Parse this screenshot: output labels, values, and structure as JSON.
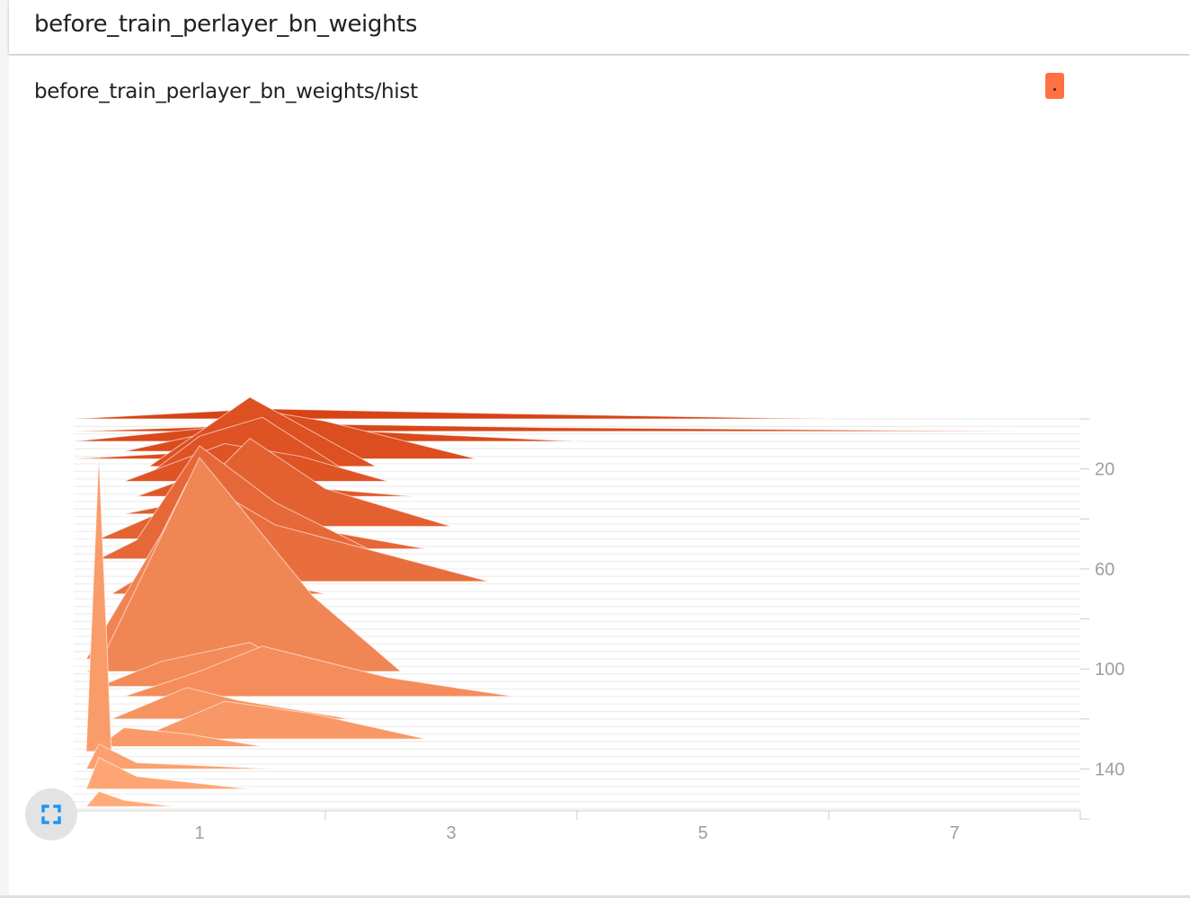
{
  "header": {
    "title": "before_train_perlayer_bn_weights"
  },
  "card": {
    "title": "before_train_perlayer_bn_weights/hist"
  },
  "colors": {
    "accent": "#ff7043",
    "icon": "#2196f3"
  },
  "icons": {
    "expand": "fullscreen-icon"
  },
  "chart_data": {
    "type": "histogram-offset",
    "xlim": [
      0,
      8
    ],
    "x_ticks": [
      1,
      3,
      5,
      7
    ],
    "step_range": [
      0,
      156
    ],
    "step_ticks": [
      20,
      60,
      100,
      140
    ],
    "x_tick_labels": [
      "1",
      "3",
      "5",
      "7"
    ],
    "step_tick_labels": [
      "20",
      "60",
      "100",
      "140"
    ],
    "distributions": [
      {
        "step": 0,
        "points": [
          [
            0,
            0
          ],
          [
            1.5,
            0.08
          ],
          [
            3.5,
            0.04
          ],
          [
            6,
            0
          ]
        ]
      },
      {
        "step": 5,
        "points": [
          [
            0,
            0
          ],
          [
            1.8,
            0.06
          ],
          [
            3.8,
            0.03
          ],
          [
            7.5,
            0
          ]
        ]
      },
      {
        "step": 9,
        "points": [
          [
            0,
            0
          ],
          [
            1.2,
            0.12
          ],
          [
            1.9,
            0.1
          ],
          [
            4,
            0
          ]
        ]
      },
      {
        "step": 13,
        "points": [
          [
            0.4,
            0
          ],
          [
            1.4,
            0.22
          ],
          [
            1.9,
            0.1
          ],
          [
            2.5,
            0
          ]
        ]
      },
      {
        "step": 16,
        "points": [
          [
            0,
            0
          ],
          [
            0.9,
            0.05
          ],
          [
            1.4,
            0.4
          ],
          [
            2.0,
            0.3
          ],
          [
            3.2,
            0
          ]
        ]
      },
      {
        "step": 19,
        "points": [
          [
            0.6,
            0
          ],
          [
            1.4,
            0.55
          ],
          [
            2.4,
            0
          ]
        ]
      },
      {
        "step": 22,
        "points": [
          [
            0.6,
            0
          ],
          [
            1.0,
            0.3
          ],
          [
            1.5,
            0.45
          ],
          [
            2.2,
            0
          ]
        ]
      },
      {
        "step": 25,
        "points": [
          [
            0.4,
            0
          ],
          [
            1.2,
            0.3
          ],
          [
            1.8,
            0.2
          ],
          [
            2.5,
            0
          ]
        ]
      },
      {
        "step": 31,
        "points": [
          [
            0.5,
            0
          ],
          [
            1.0,
            0.18
          ],
          [
            1.5,
            0.1
          ],
          [
            2.7,
            0
          ]
        ]
      },
      {
        "step": 38,
        "points": [
          [
            0.4,
            0
          ],
          [
            1.0,
            0.12
          ],
          [
            1.4,
            0.3
          ],
          [
            2.5,
            0
          ]
        ]
      },
      {
        "step": 43,
        "points": [
          [
            0.7,
            0
          ],
          [
            1.4,
            0.7
          ],
          [
            2.0,
            0.3
          ],
          [
            3.0,
            0
          ]
        ]
      },
      {
        "step": 48,
        "points": [
          [
            0.2,
            0
          ],
          [
            0.9,
            0.3
          ],
          [
            1.2,
            0.2
          ],
          [
            1.8,
            0
          ]
        ]
      },
      {
        "step": 52,
        "points": [
          [
            0.4,
            0
          ],
          [
            0.9,
            0.3
          ],
          [
            1.4,
            0.25
          ],
          [
            2.8,
            0
          ]
        ]
      },
      {
        "step": 56,
        "points": [
          [
            0.2,
            0
          ],
          [
            0.5,
            0.15
          ],
          [
            1.0,
            0.9
          ],
          [
            1.6,
            0.45
          ],
          [
            2.5,
            0
          ]
        ]
      },
      {
        "step": 65,
        "points": [
          [
            0.5,
            0
          ],
          [
            1.0,
            0.8
          ],
          [
            1.6,
            0.45
          ],
          [
            3.3,
            0
          ]
        ]
      },
      {
        "step": 70,
        "points": [
          [
            0.3,
            0
          ],
          [
            0.8,
            0.3
          ],
          [
            1.1,
            0.2
          ],
          [
            2.0,
            0
          ]
        ]
      },
      {
        "step": 80,
        "points": [
          [
            0.3,
            0
          ],
          [
            0.8,
            0.45
          ],
          [
            1.3,
            0.5
          ],
          [
            2.0,
            0
          ]
        ]
      },
      {
        "step": 85,
        "points": [
          [
            0.4,
            0
          ],
          [
            0.9,
            0.4
          ],
          [
            1.4,
            0.3
          ],
          [
            2.2,
            0
          ]
        ]
      },
      {
        "step": 96,
        "points": [
          [
            0.1,
            0
          ],
          [
            0.7,
            1.0
          ],
          [
            0.9,
            1.4
          ],
          [
            1.4,
            0.9
          ],
          [
            1.7,
            0.4
          ],
          [
            2.4,
            0
          ]
        ]
      },
      {
        "step": 101,
        "points": [
          [
            0.1,
            0
          ],
          [
            0.2,
            0.05
          ],
          [
            1.0,
            1.7
          ],
          [
            1.9,
            0.6
          ],
          [
            2.6,
            0
          ]
        ]
      },
      {
        "step": 107,
        "points": [
          [
            0.2,
            0
          ],
          [
            0.7,
            0.2
          ],
          [
            1.4,
            0.35
          ],
          [
            2.0,
            0
          ]
        ]
      },
      {
        "step": 111,
        "points": [
          [
            0.4,
            0
          ],
          [
            1.0,
            0.2
          ],
          [
            1.5,
            0.4
          ],
          [
            2.5,
            0.15
          ],
          [
            3.5,
            0
          ]
        ]
      },
      {
        "step": 120,
        "points": [
          [
            0.3,
            0
          ],
          [
            0.9,
            0.25
          ],
          [
            1.3,
            0.15
          ],
          [
            2.2,
            0
          ]
        ]
      },
      {
        "step": 128,
        "points": [
          [
            0.5,
            0
          ],
          [
            1.2,
            0.3
          ],
          [
            1.9,
            0.2
          ],
          [
            2.8,
            0
          ]
        ]
      },
      {
        "step": 131,
        "points": [
          [
            0.2,
            0
          ],
          [
            0.4,
            0.15
          ],
          [
            0.9,
            0.1
          ],
          [
            1.5,
            0
          ]
        ]
      },
      {
        "step": 133,
        "points": [
          [
            0.1,
            0
          ],
          [
            0.2,
            2.35
          ],
          [
            0.3,
            0
          ],
          [
            0.35,
            0
          ]
        ]
      },
      {
        "step": 140,
        "points": [
          [
            0.1,
            0
          ],
          [
            0.2,
            0.2
          ],
          [
            0.5,
            0.05
          ],
          [
            1.6,
            0
          ]
        ]
      },
      {
        "step": 148,
        "points": [
          [
            0.1,
            0
          ],
          [
            0.2,
            0.25
          ],
          [
            0.5,
            0.1
          ],
          [
            1.4,
            0
          ]
        ]
      },
      {
        "step": 155,
        "points": [
          [
            0.1,
            0
          ],
          [
            0.2,
            0.12
          ],
          [
            0.4,
            0.05
          ],
          [
            0.8,
            0
          ]
        ]
      }
    ]
  }
}
